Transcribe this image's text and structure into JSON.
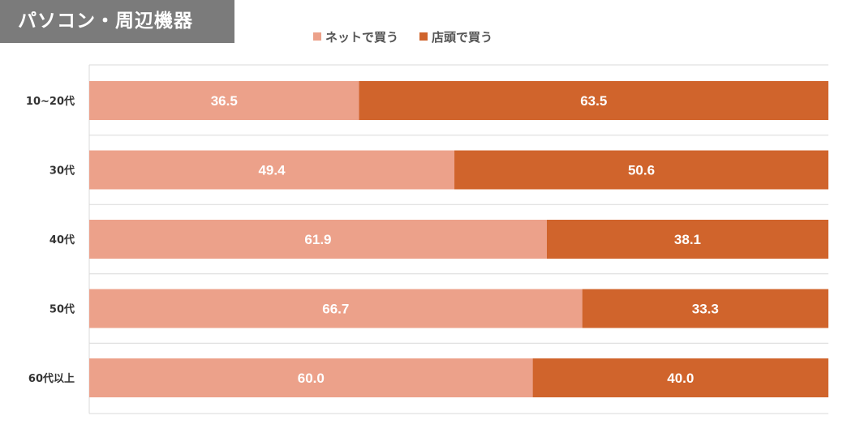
{
  "title": "パソコン・周辺機器",
  "colors": {
    "net": "#eca18a",
    "store": "#d0642c",
    "grid": "#d9d9d9",
    "label": "#333333"
  },
  "chart_data": {
    "type": "bar",
    "orientation": "horizontal",
    "stacked": true,
    "categories": [
      "10~20代",
      "30代",
      "40代",
      "50代",
      "60代以上"
    ],
    "series": [
      {
        "name": "ネットで買う",
        "values": [
          36.5,
          49.4,
          61.9,
          66.7,
          60.0
        ]
      },
      {
        "name": "店頭で買う",
        "values": [
          63.5,
          50.6,
          38.1,
          33.3,
          40.0
        ]
      }
    ],
    "xlim": [
      0,
      100
    ],
    "data_labels": true,
    "legend": "top",
    "grid": true
  }
}
